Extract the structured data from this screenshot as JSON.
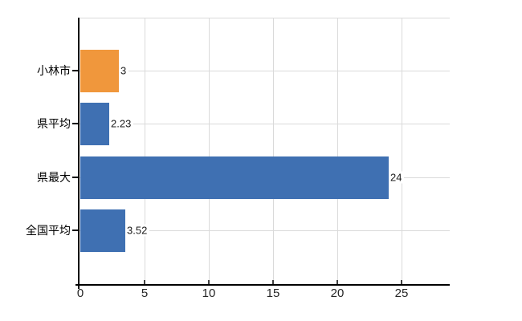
{
  "chart_data": {
    "type": "bar",
    "orientation": "horizontal",
    "title": "",
    "xlabel": "",
    "ylabel": "",
    "categories": [
      "小林市",
      "県平均",
      "県最大",
      "全国平均"
    ],
    "values": [
      3,
      2.23,
      24,
      3.52
    ],
    "value_labels": [
      "3",
      "2.23",
      "24",
      "3.52"
    ],
    "bar_colors": [
      "#F0973C",
      "#3F70B2",
      "#3F70B2",
      "#3F70B2"
    ],
    "x_tick_values": [
      0,
      5,
      10,
      15,
      20,
      25
    ],
    "x_tick_labels": [
      "0",
      "5",
      "10",
      "15",
      "20",
      "25"
    ],
    "xlim": [
      0,
      28.75
    ],
    "grid": true,
    "legend": false,
    "colors": {
      "highlight_bar": "#F0973C",
      "default_bar": "#3F70B2",
      "gridline": "#DADADA",
      "axis": "#000000",
      "x_tick_mark": "#404040",
      "tick_label": "#262626",
      "value_label": "#1A1A1A",
      "background": "#FFFFFF"
    }
  }
}
